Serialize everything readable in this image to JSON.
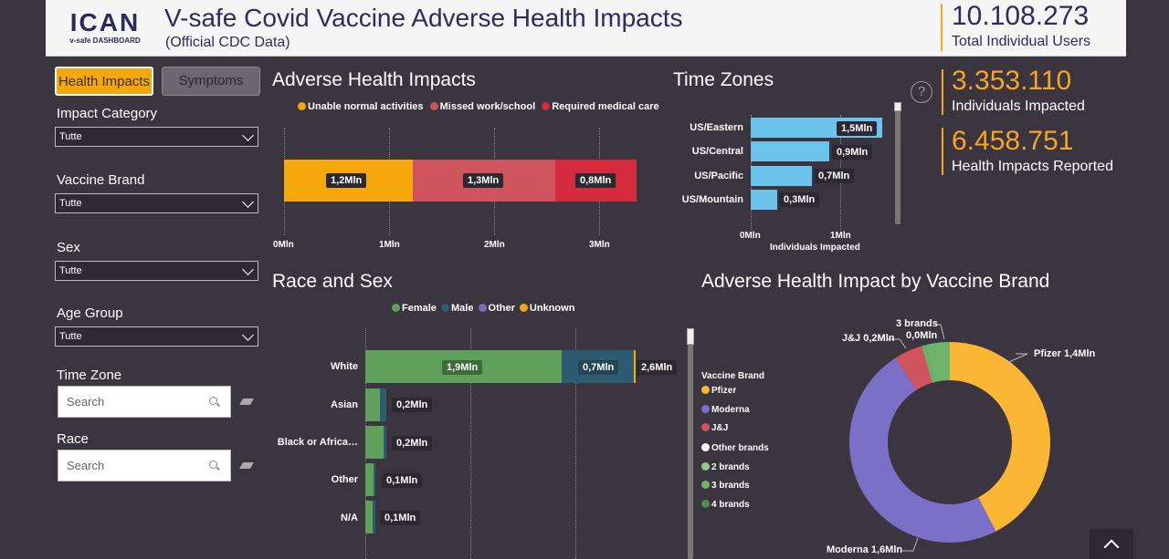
{
  "header": {
    "logo_text": "ICAN",
    "logo_sub": "v-safe DASHBOARD",
    "title": "V-safe Covid Vaccine Adverse Health Impacts",
    "subtitle": "(Official CDC Data)",
    "total_users_value": "10.108.273",
    "total_users_label": "Total Individual Users"
  },
  "tabs": {
    "health": "Health Impacts",
    "symptoms": "Symptoms"
  },
  "filters": {
    "impact_category": {
      "label": "Impact Category",
      "value": "Tutte"
    },
    "vaccine_brand": {
      "label": "Vaccine Brand",
      "value": "Tutte"
    },
    "sex": {
      "label": "Sex",
      "value": "Tutte"
    },
    "age_group": {
      "label": "Age Group",
      "value": "Tutte"
    },
    "time_zone": {
      "label": "Time Zone",
      "placeholder": "Search"
    },
    "race": {
      "label": "Race",
      "placeholder": "Search"
    }
  },
  "kpis": {
    "help": "?",
    "impacted_value": "3.353.110",
    "impacted_label": "Individuals Impacted",
    "reported_value": "6.458.751",
    "reported_label": "Health Impacts Reported"
  },
  "colors": {
    "accent": "#f5a623",
    "unable": "#f5a70b",
    "missed": "#d0545e",
    "medical": "#d32a3c",
    "female": "#5fa05b",
    "male": "#2d5c72",
    "other": "#7a6dbf",
    "unknown": "#f5a70b",
    "tz": "#6cc3ec",
    "pfizer": "#fbb633",
    "moderna": "#7b6fc8",
    "jj": "#d0545e",
    "other_brands": "#ffffff",
    "two_brands": "#90c98b",
    "three_brands": "#6fb36a",
    "four_brands": "#4f8c4a"
  },
  "adverse": {
    "title": "Adverse Health Impacts",
    "legend": [
      "Unable normal activities",
      "Missed work/school",
      "Required medical care"
    ],
    "labels": [
      "1,2Mln",
      "1,3Mln",
      "0,8Mln"
    ],
    "ticks": [
      "0Mln",
      "1Mln",
      "2Mln",
      "3Mln"
    ]
  },
  "timezones": {
    "title": "Time Zones",
    "xlabel": "Individuals Impacted",
    "ticks": [
      "0Mln",
      "1Mln"
    ],
    "rows": [
      {
        "name": "US/Eastern",
        "label": "1,5Mln"
      },
      {
        "name": "US/Central",
        "label": "0,9Mln"
      },
      {
        "name": "US/Pacific",
        "label": "0,7Mln"
      },
      {
        "name": "US/Mountain",
        "label": "0,3Mln"
      }
    ]
  },
  "race": {
    "title": "Race and Sex",
    "legend": [
      "Female",
      "Male",
      "Other",
      "Unknown"
    ],
    "rows": [
      {
        "name": "White",
        "female_label": "1,9Mln",
        "male_label": "0,7Mln",
        "total_label": "2,6Mln"
      },
      {
        "name": "Asian",
        "total_label": "0,2Mln"
      },
      {
        "name": "Black or Africa…",
        "total_label": "0,2Mln"
      },
      {
        "name": "Other",
        "total_label": "0,1Mln"
      },
      {
        "name": "N/A",
        "total_label": "0,1Mln"
      }
    ]
  },
  "brand": {
    "title": "Adverse Health Impact by Vaccine Brand",
    "legend_title": "Vaccine Brand",
    "legend": [
      "Pfizer",
      "Moderna",
      "J&J",
      "Other brands",
      "2 brands",
      "3 brands",
      "4 brands"
    ],
    "labels": {
      "pfizer": "Pfizer 1,4Mln",
      "moderna": "Moderna 1,6Mln",
      "jj": "J&J 0,2Mln",
      "three_brands_a": "3 brands",
      "three_brands_b": "0,0Mln"
    }
  },
  "chart_data": [
    {
      "type": "bar",
      "title": "Adverse Health Impacts",
      "orientation": "horizontal-stacked",
      "categories": [
        ""
      ],
      "series": [
        {
          "name": "Unable normal activities",
          "values": [
            1.23
          ]
        },
        {
          "name": "Missed work/school",
          "values": [
            1.35
          ]
        },
        {
          "name": "Required medical care",
          "values": [
            0.78
          ]
        }
      ],
      "units": "Mln",
      "xlim": [
        0,
        3.4
      ]
    },
    {
      "type": "bar",
      "title": "Time Zones",
      "orientation": "horizontal",
      "categories": [
        "US/Eastern",
        "US/Central",
        "US/Pacific",
        "US/Mountain"
      ],
      "values": [
        1.5,
        0.9,
        0.7,
        0.3
      ],
      "xlabel": "Individuals Impacted",
      "units": "Mln",
      "xlim": [
        0,
        1.55
      ]
    },
    {
      "type": "bar",
      "title": "Race and Sex",
      "orientation": "horizontal-stacked",
      "categories": [
        "White",
        "Asian",
        "Black or Africa…",
        "Other",
        "N/A"
      ],
      "series": [
        {
          "name": "Female",
          "values": [
            1.9,
            0.14,
            0.18,
            0.08,
            0.07
          ]
        },
        {
          "name": "Male",
          "values": [
            0.7,
            0.06,
            0.02,
            0.02,
            0.03
          ]
        },
        {
          "name": "Other",
          "values": [
            0,
            0,
            0,
            0,
            0
          ]
        },
        {
          "name": "Unknown",
          "values": [
            0.02,
            0,
            0,
            0,
            0
          ]
        }
      ],
      "units": "Mln"
    },
    {
      "type": "pie",
      "title": "Adverse Health Impact by Vaccine Brand",
      "categories": [
        "Pfizer",
        "Moderna",
        "J&J",
        "3 brands",
        "Other"
      ],
      "values": [
        1.4,
        1.6,
        0.15,
        0.02,
        0.13
      ],
      "units": "Mln"
    }
  ]
}
